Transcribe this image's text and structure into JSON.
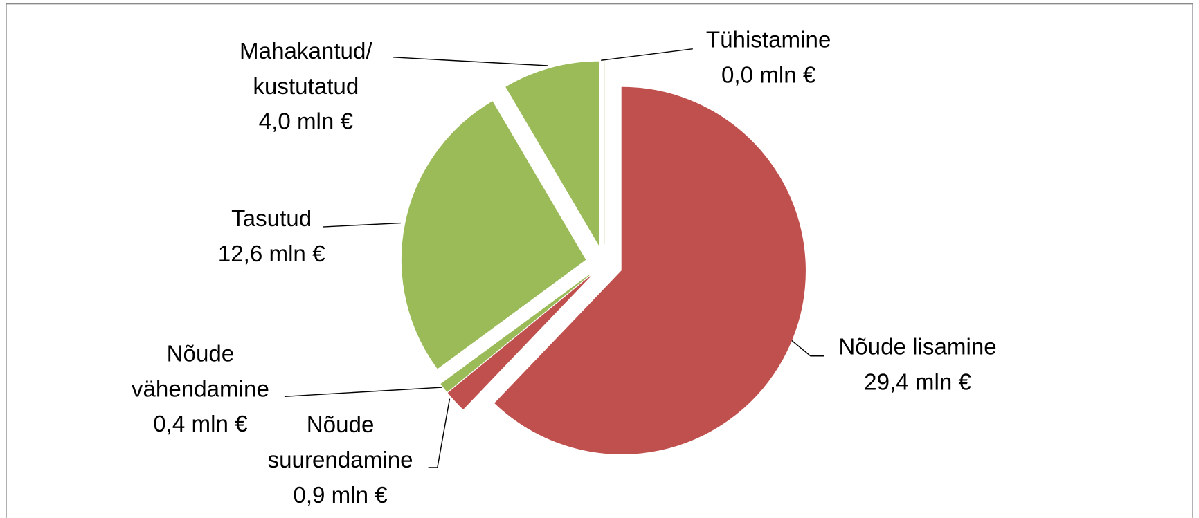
{
  "chart_data": {
    "type": "pie",
    "categories": [
      "Nõude lisamine",
      "Nõude suurendamine",
      "Nõude vähendamine",
      "Tasutud",
      "Mahakantud/kustutatud",
      "Tühistamine"
    ],
    "values": [
      29.4,
      0.9,
      0.4,
      12.6,
      4.0,
      0.0
    ],
    "value_labels": [
      "29,4 mln €",
      "0,9 mln €",
      "0,4 mln €",
      "12,6 mln €",
      "4,0 mln €",
      "0,0 mln €"
    ],
    "colors": [
      "#c0504d",
      "#c0504d",
      "#9bbb59",
      "#9bbb59",
      "#9bbb59",
      "#9bbb59"
    ]
  }
}
